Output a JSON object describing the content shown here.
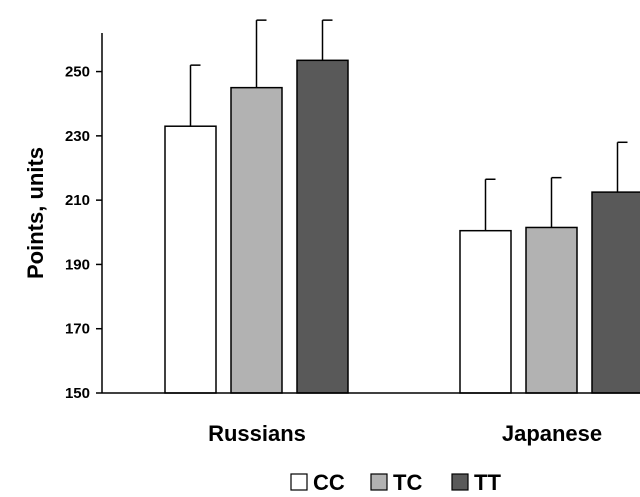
{
  "chart_data": {
    "type": "bar",
    "categories": [
      "Russians",
      "Japanese"
    ],
    "ylabel": "Points, units",
    "xlabel": "",
    "ylim": [
      150,
      262
    ],
    "yticks": [
      150,
      170,
      190,
      210,
      230,
      250
    ],
    "grid": false,
    "legend_position": "bottom",
    "series": [
      {
        "name": "CC",
        "values": [
          233,
          200.5
        ],
        "error": [
          19,
          16
        ],
        "color": "#ffffff"
      },
      {
        "name": "TC",
        "values": [
          245,
          201.5
        ],
        "error": [
          21,
          15.5
        ],
        "color": "#b2b2b2"
      },
      {
        "name": "TT",
        "values": [
          253.5,
          212.5
        ],
        "error": [
          12.5,
          15.5
        ],
        "color": "#595959"
      }
    ]
  }
}
